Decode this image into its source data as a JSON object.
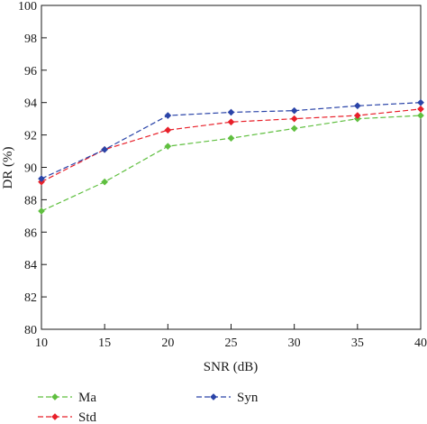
{
  "chart_data": {
    "type": "line",
    "xlabel": "SNR (dB)",
    "ylabel": "DR (%)",
    "x": [
      10,
      15,
      20,
      25,
      30,
      35,
      40
    ],
    "xlim": [
      10,
      40
    ],
    "ylim": [
      80,
      100
    ],
    "xticks": [
      "10",
      "15",
      "20",
      "25",
      "30",
      "35",
      "40"
    ],
    "yticks": [
      "80",
      "82",
      "84",
      "86",
      "88",
      "90",
      "92",
      "94",
      "96",
      "98",
      "100"
    ],
    "grid": false,
    "legend_position": "bottom",
    "series": [
      {
        "name": "Ma",
        "color": "#5fbf3f",
        "marker": "diamond",
        "values": [
          87.3,
          89.1,
          91.3,
          91.8,
          92.4,
          93.0,
          93.2
        ]
      },
      {
        "name": "Std",
        "color": "#e8202a",
        "marker": "diamond",
        "values": [
          89.1,
          91.1,
          92.3,
          92.8,
          93.0,
          93.2,
          93.6
        ]
      },
      {
        "name": "Syn",
        "color": "#2a44a8",
        "marker": "diamond",
        "values": [
          89.3,
          91.1,
          93.2,
          93.4,
          93.5,
          93.8,
          94.0
        ]
      }
    ]
  }
}
